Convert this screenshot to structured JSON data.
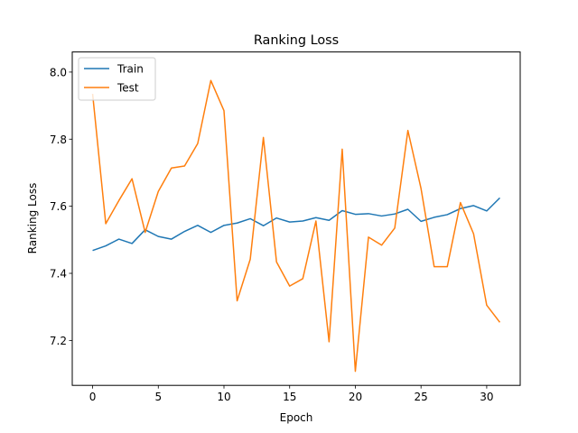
{
  "chart_data": {
    "type": "line",
    "title": "Ranking Loss",
    "xlabel": "Epoch",
    "ylabel": "Ranking Loss",
    "xlim": [
      -1.55,
      32.55
    ],
    "ylim": [
      7.066,
      8.06
    ],
    "xticks": [
      0,
      5,
      10,
      15,
      20,
      25,
      30
    ],
    "yticks": [
      7.2,
      7.4,
      7.6,
      7.8,
      8.0
    ],
    "legend_position": "top-left",
    "grid": false,
    "x": [
      0,
      1,
      2,
      3,
      4,
      5,
      6,
      7,
      8,
      9,
      10,
      11,
      12,
      13,
      14,
      15,
      16,
      17,
      18,
      19,
      20,
      21,
      22,
      23,
      24,
      25,
      26,
      27,
      28,
      29,
      30,
      31
    ],
    "series": [
      {
        "name": "Train",
        "color": "#1f77b4",
        "values": [
          7.468,
          7.482,
          7.502,
          7.489,
          7.53,
          7.51,
          7.502,
          7.525,
          7.543,
          7.522,
          7.543,
          7.55,
          7.563,
          7.542,
          7.565,
          7.553,
          7.556,
          7.566,
          7.558,
          7.587,
          7.576,
          7.578,
          7.571,
          7.577,
          7.591,
          7.555,
          7.567,
          7.575,
          7.593,
          7.602,
          7.586,
          7.625
        ]
      },
      {
        "name": "Test",
        "color": "#ff7f0e",
        "values": [
          7.935,
          7.548,
          7.617,
          7.682,
          7.522,
          7.644,
          7.714,
          7.72,
          7.787,
          7.975,
          7.885,
          7.318,
          7.442,
          7.805,
          7.434,
          7.362,
          7.384,
          7.556,
          7.196,
          7.77,
          7.108,
          7.508,
          7.484,
          7.535,
          7.826,
          7.653,
          7.42,
          7.42,
          7.611,
          7.518,
          7.305,
          7.254
        ]
      }
    ]
  }
}
